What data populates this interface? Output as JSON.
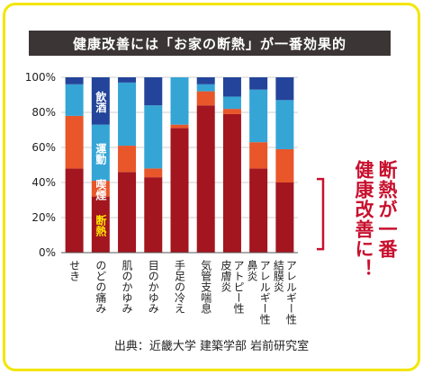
{
  "title": "健康改善には「お家の断熱」が一番効果的",
  "callout": [
    "断熱が一番",
    "健康改善に！"
  ],
  "source": "出典：近畿大学 建築学部 岩前研究室",
  "chart_data": {
    "type": "bar",
    "stacked": true,
    "categories": [
      "せき",
      "のどの痛み",
      "肌のかゆみ",
      "目のかゆみ",
      "手足の冷え",
      "気管支喘息",
      "アトピー性皮膚炎",
      "アレルギー性鼻炎",
      "アレルギー性結膜炎"
    ],
    "category_lines": [
      [
        "せき"
      ],
      [
        "のどの痛み"
      ],
      [
        "肌のかゆみ"
      ],
      [
        "目のかゆみ"
      ],
      [
        "手足の冷え"
      ],
      [
        "気管支喘息"
      ],
      [
        "アトピー性",
        "皮膚炎"
      ],
      [
        "アレルギー性",
        "鼻炎"
      ],
      [
        "アレルギー性",
        "結膜炎"
      ]
    ],
    "series": [
      {
        "name": "断熱",
        "color": "#a3151f",
        "values": [
          48,
          32,
          46,
          43,
          71,
          84,
          79,
          48,
          40
        ]
      },
      {
        "name": "喫煙",
        "color": "#e8562a",
        "values": [
          30,
          9,
          15,
          5,
          2,
          8,
          3,
          15,
          19
        ]
      },
      {
        "name": "運動",
        "color": "#35a5d6",
        "values": [
          18,
          32,
          36,
          36,
          27,
          4,
          7,
          30,
          28
        ]
      },
      {
        "name": "飲酒",
        "color": "#23449a",
        "values": [
          4,
          27,
          3,
          16,
          0,
          4,
          11,
          7,
          13
        ]
      }
    ],
    "ylim": [
      0,
      100
    ],
    "y_ticks": [
      "0%",
      "20%",
      "40%",
      "60%",
      "80%",
      "100%"
    ],
    "legend_placement": "inside second bar"
  }
}
